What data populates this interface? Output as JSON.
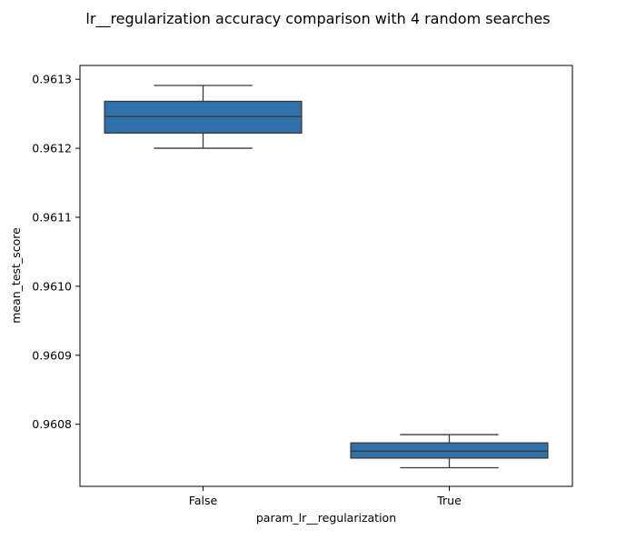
{
  "chart_data": {
    "type": "box",
    "title": "lr__regularization accuracy comparison with 4 random searches",
    "xlabel": "param_lr__regularization",
    "ylabel": "mean_test_score",
    "categories": [
      "False",
      "True"
    ],
    "ylim": [
      0.96071,
      0.96132
    ],
    "yticks": [
      0.9608,
      0.9609,
      0.961,
      0.9611,
      0.9612,
      0.9613
    ],
    "ytick_labels": [
      "0.9608",
      "0.9609",
      "0.9610",
      "0.9611",
      "0.9612",
      "0.9613"
    ],
    "grid": false,
    "box_color": "#2f72ab",
    "line_color": "#3a3a3a",
    "boxes": [
      {
        "category": "False",
        "whisker_low": 0.9612,
        "q1": 0.961222,
        "median": 0.961246,
        "q3": 0.961268,
        "whisker_high": 0.961291
      },
      {
        "category": "True",
        "whisker_low": 0.960737,
        "q1": 0.960751,
        "median": 0.960761,
        "q3": 0.960773,
        "whisker_high": 0.960785
      }
    ]
  }
}
